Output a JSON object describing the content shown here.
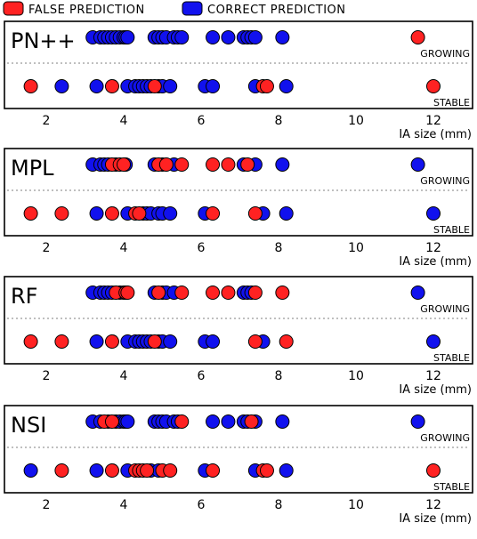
{
  "legend": [
    {
      "label": "FALSE PREDICTION",
      "color": "#ff2222"
    },
    {
      "label": "CORRECT PREDICTION",
      "color": "#1111ee"
    }
  ],
  "chart_data": {
    "type": "scatter",
    "x_axis": {
      "label": "IA size (mm)",
      "range": [
        0,
        13
      ],
      "ticks": [
        2,
        4,
        6,
        8,
        10,
        12
      ]
    },
    "rows": [
      "GROWING",
      "STABLE"
    ],
    "grid": false,
    "legend_position": "top-left",
    "panels": [
      {
        "title": "PN++",
        "growing": {
          "correct": [
            3.2,
            3.4,
            3.5,
            3.6,
            3.7,
            3.8,
            3.9,
            4.0,
            4.05,
            4.1,
            4.8,
            4.9,
            5.0,
            5.1,
            5.3,
            5.4,
            5.5,
            6.3,
            6.7,
            7.1,
            7.2,
            7.3,
            7.4,
            8.1
          ],
          "false": [
            11.6
          ]
        },
        "stable": {
          "correct": [
            2.4,
            3.3,
            4.1,
            4.3,
            4.4,
            4.5,
            4.6,
            4.7,
            4.9,
            5.0,
            5.2,
            6.1,
            6.3,
            7.4,
            8.2
          ],
          "false": [
            1.6,
            3.7,
            4.8,
            7.6,
            7.7,
            12.0
          ]
        }
      },
      {
        "title": "MPL",
        "growing": {
          "correct": [
            3.2,
            3.4,
            3.5,
            3.6,
            3.8,
            4.05,
            4.8,
            5.0,
            5.3,
            7.1,
            7.4,
            8.1,
            11.6
          ],
          "false": [
            3.7,
            3.9,
            4.0,
            4.9,
            5.1,
            5.5,
            6.3,
            6.7,
            7.2
          ]
        },
        "stable": {
          "correct": [
            3.3,
            4.1,
            4.5,
            4.6,
            4.7,
            4.9,
            5.0,
            5.2,
            6.1,
            7.6,
            8.2,
            12.0
          ],
          "false": [
            1.6,
            2.4,
            3.7,
            4.3,
            4.4,
            6.3,
            7.4
          ]
        }
      },
      {
        "title": "RF",
        "growing": {
          "correct": [
            3.2,
            3.4,
            3.5,
            3.6,
            3.7,
            3.9,
            4.0,
            4.8,
            5.0,
            5.1,
            5.3,
            7.1,
            7.2,
            7.3,
            11.6
          ],
          "false": [
            3.8,
            4.05,
            4.1,
            4.9,
            5.5,
            6.3,
            6.7,
            7.4,
            8.1
          ]
        },
        "stable": {
          "correct": [
            3.3,
            4.1,
            4.3,
            4.4,
            4.5,
            4.6,
            4.7,
            4.9,
            5.0,
            5.2,
            6.1,
            6.3,
            7.6,
            12.0
          ],
          "false": [
            1.6,
            2.4,
            3.7,
            4.8,
            7.4,
            8.2
          ]
        }
      },
      {
        "title": "NSI",
        "growing": {
          "correct": [
            3.2,
            3.4,
            3.6,
            3.8,
            3.9,
            4.0,
            4.05,
            4.1,
            4.8,
            4.9,
            5.0,
            5.1,
            5.3,
            5.4,
            6.3,
            6.7,
            7.1,
            7.2,
            7.4,
            8.1,
            11.6
          ],
          "false": [
            3.5,
            3.7,
            5.5,
            7.3
          ]
        },
        "stable": {
          "correct": [
            1.6,
            3.3,
            4.1,
            4.7,
            4.9,
            6.1,
            7.4,
            8.2
          ],
          "false": [
            2.4,
            3.7,
            4.3,
            4.4,
            4.5,
            4.6,
            5.0,
            5.2,
            6.3,
            7.6,
            7.7,
            12.0
          ]
        }
      }
    ]
  }
}
